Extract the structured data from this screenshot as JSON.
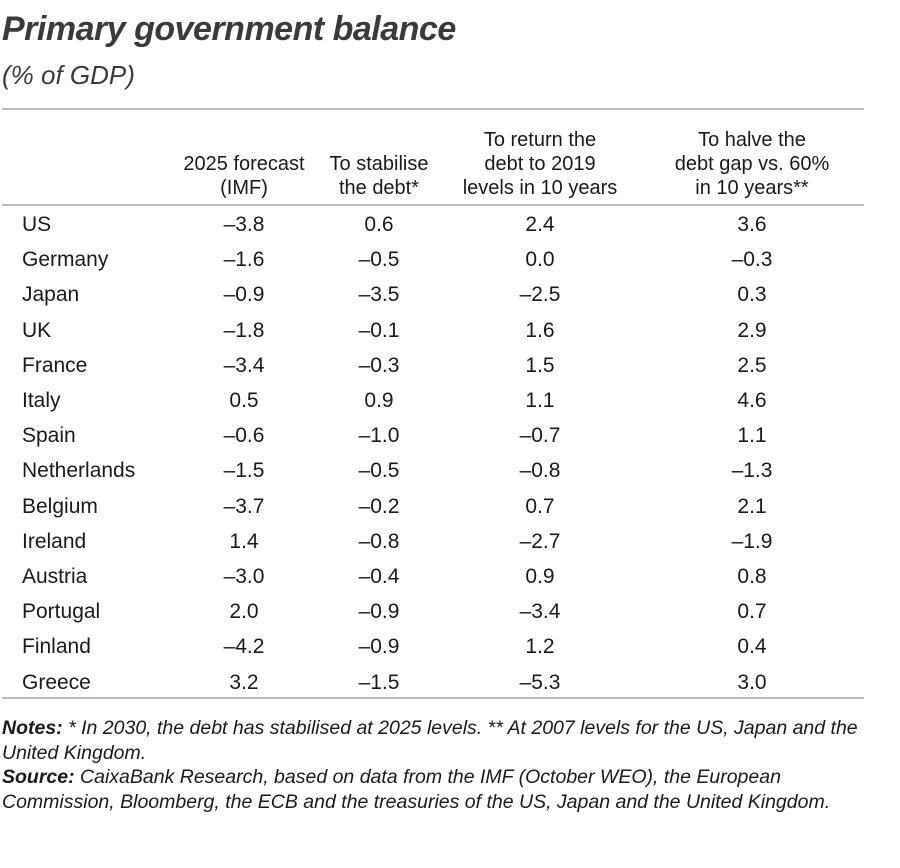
{
  "title": "Primary government balance",
  "subtitle": "(% of GDP)",
  "columns": [
    "2025 forecast\n(IMF)",
    "To stabilise\nthe debt*",
    "To return the\ndebt to 2019\nlevels in 10 years",
    "To halve the\ndebt gap vs. 60%\nin 10 years**"
  ],
  "rows": [
    {
      "country": "US",
      "values": [
        "–3.8",
        "0.6",
        "2.4",
        "3.6"
      ]
    },
    {
      "country": "Germany",
      "values": [
        "–1.6",
        "–0.5",
        "0.0",
        "–0.3"
      ]
    },
    {
      "country": "Japan",
      "values": [
        "–0.9",
        "–3.5",
        "–2.5",
        "0.3"
      ]
    },
    {
      "country": "UK",
      "values": [
        "–1.8",
        "–0.1",
        "1.6",
        "2.9"
      ]
    },
    {
      "country": "France",
      "values": [
        "–3.4",
        "–0.3",
        "1.5",
        "2.5"
      ]
    },
    {
      "country": "Italy",
      "values": [
        "0.5",
        "0.9",
        "1.1",
        "4.6"
      ]
    },
    {
      "country": "Spain",
      "values": [
        "–0.6",
        "–1.0",
        "–0.7",
        "1.1"
      ]
    },
    {
      "country": "Netherlands",
      "values": [
        "–1.5",
        "–0.5",
        "–0.8",
        "–1.3"
      ]
    },
    {
      "country": "Belgium",
      "values": [
        "–3.7",
        "–0.2",
        "0.7",
        "2.1"
      ]
    },
    {
      "country": "Ireland",
      "values": [
        "1.4",
        "–0.8",
        "–2.7",
        "–1.9"
      ]
    },
    {
      "country": "Austria",
      "values": [
        "–3.0",
        "–0.4",
        "0.9",
        "0.8"
      ]
    },
    {
      "country": "Portugal",
      "values": [
        "2.0",
        "–0.9",
        "–3.4",
        "0.7"
      ]
    },
    {
      "country": "Finland",
      "values": [
        "–4.2",
        "–0.9",
        "1.2",
        "0.4"
      ]
    },
    {
      "country": "Greece",
      "values": [
        "3.2",
        "–1.5",
        "–5.3",
        "3.0"
      ]
    }
  ],
  "notes": {
    "label": "Notes:",
    "text": "* In 2030, the debt has stabilised at 2025 levels. ** At 2007 levels for the US, Japan and the United Kingdom."
  },
  "source": {
    "label": "Source:",
    "text": "CaixaBank Research, based on data from the IMF (October WEO), the European Commission, Bloomberg, the ECB and the treasuries of the US, Japan and the United Kingdom."
  }
}
